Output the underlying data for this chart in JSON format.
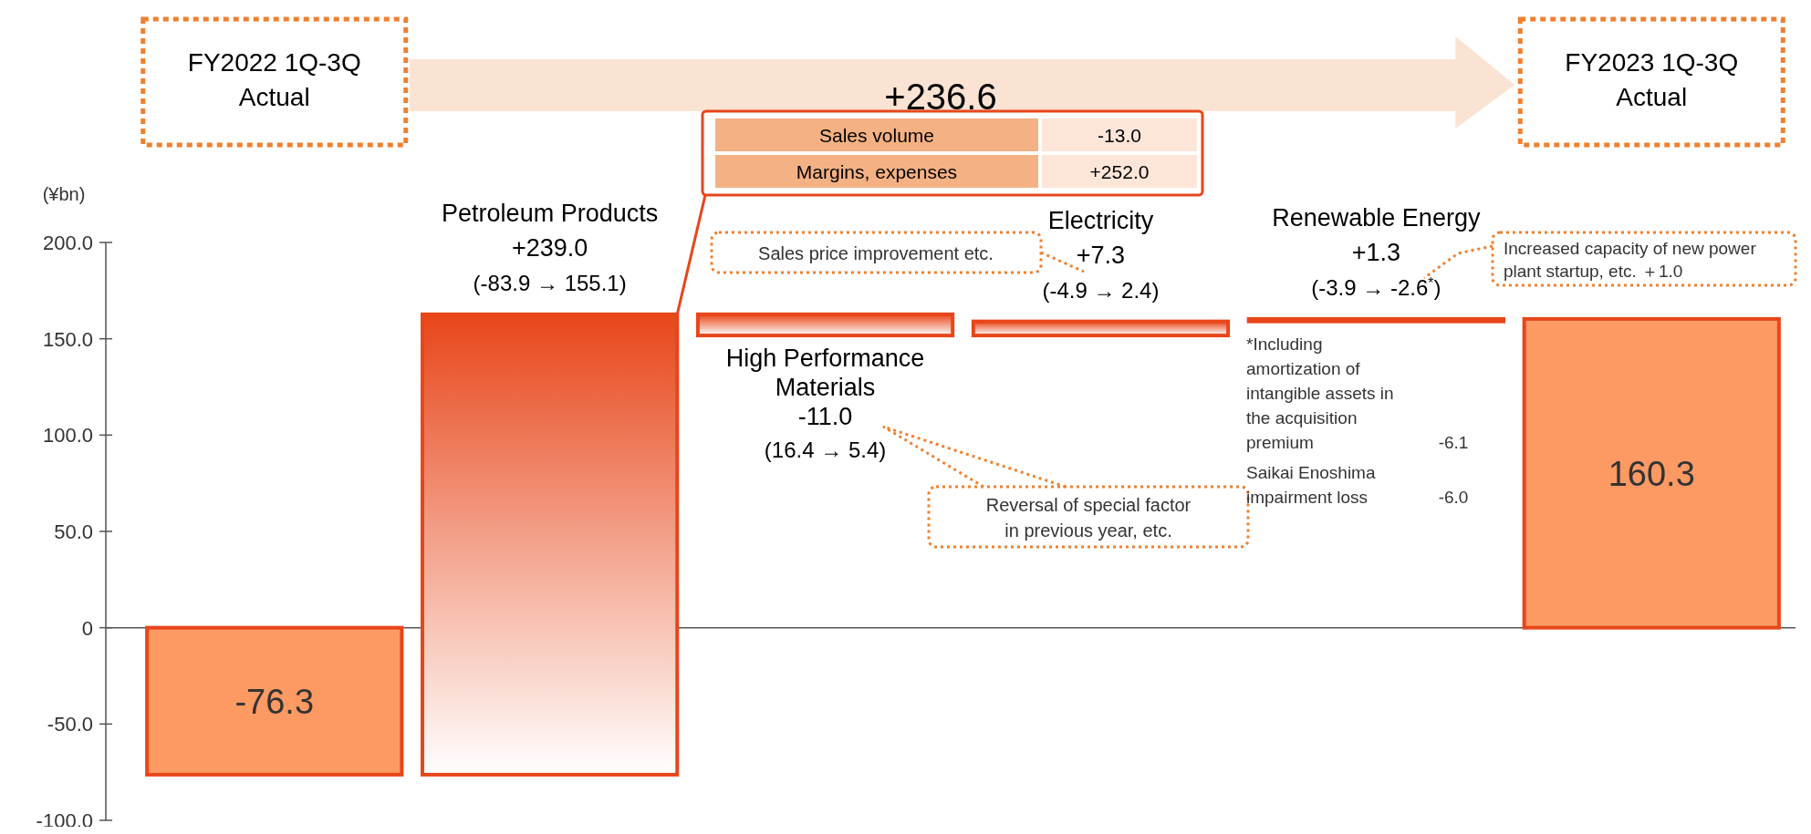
{
  "chart_data": {
    "type": "bar",
    "ylabel": "(¥bn)",
    "categories": [
      "FY2022 1Q-3Q Actual",
      "Petroleum Products",
      "High Performance Materials",
      "Electricity",
      "Renewable Energy",
      "FY2023 1Q-3Q Actual"
    ],
    "values": [
      -76.3,
      239.0,
      -11.0,
      7.3,
      1.3,
      160.3
    ],
    "base": [
      0,
      -76.3,
      162.7,
      151.7,
      159.0,
      0
    ],
    "colors": [
      "#fd9a64",
      "#e8461a",
      "#e8461a",
      "#e8461a",
      "#e8461a",
      "#fd9a64"
    ],
    "value_labels": [
      "-76.3",
      "+239.0",
      "-11.0",
      "+7.3",
      "+1.3",
      "160.3"
    ],
    "ylim": [
      -100,
      200
    ],
    "yticks": [
      {
        "value": -100,
        "label": "-100.0"
      },
      {
        "value": -50,
        "label": "-50.0"
      },
      0,
      {
        "value": 50,
        "label": "50.0"
      },
      {
        "value": 100,
        "label": "100.0"
      },
      {
        "value": 150,
        "label": "150.0"
      },
      {
        "value": 200,
        "label": "200.0"
      }
    ],
    "annotations": [
      "+236.6",
      "Sales volume",
      "-13.0",
      "Margins, expenses",
      "+252.0",
      "Sales price improvement etc.",
      "Increased capacity of new power plant startup, etc. ＋1.0",
      "Reversal of special factor in previous year, etc.",
      "*Including amortization of intangible assets in the acquisition premium",
      "-6.1",
      "Saikai Enoshima impairment loss",
      "-6.0",
      "(-83.9 → 155.1)",
      "(16.4 → 5.4)",
      "(-4.9 → 2.4)",
      "(-3.9 → -2.6$^{*}$)"
    ]
  }
}
